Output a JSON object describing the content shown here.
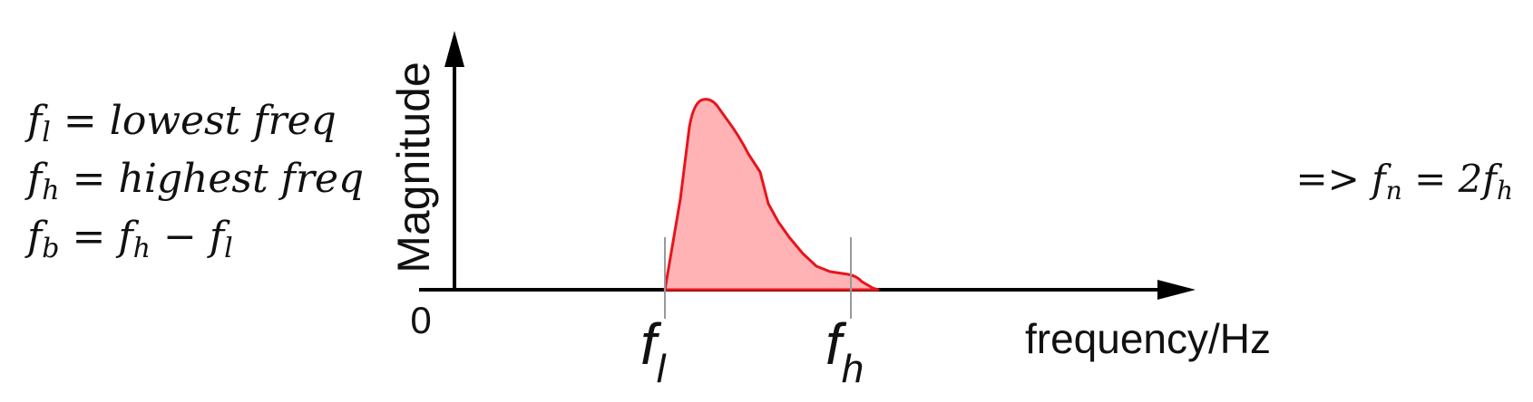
{
  "definitions": [
    {
      "symbol": "f",
      "sub": "l",
      "rhs": "= lowest freq"
    },
    {
      "symbol": "f",
      "sub": "h",
      "rhs": "= highest freq"
    },
    {
      "symbol": "f",
      "sub": "b",
      "rhs": "= f",
      "rhs_sub": "h",
      "rhs_tail": " − f",
      "rhs_tail_sub": "l"
    }
  ],
  "conclusion": {
    "prefix": "=> f",
    "sub": "n",
    "tail": " = 2f",
    "tail_sub": "h"
  },
  "axis": {
    "y_label": "Magnitude",
    "x_label": "frequency/Hz",
    "origin_label": "0"
  },
  "markers": {
    "low": {
      "symbol": "f",
      "sub": "l"
    },
    "high": {
      "symbol": "f",
      "sub": "h"
    }
  },
  "colors": {
    "curve_stroke": "#e8141c",
    "curve_fill": "#ffb3b5",
    "axis": "#000000",
    "marker_line": "#999999"
  }
}
